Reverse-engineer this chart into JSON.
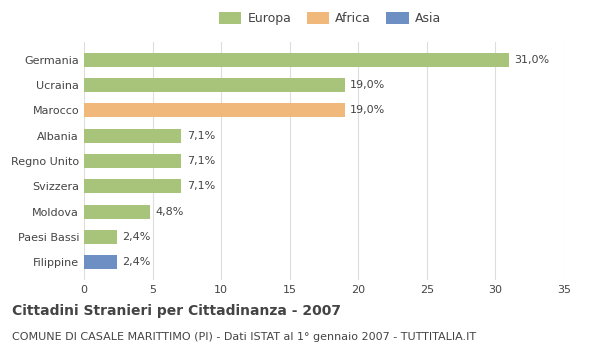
{
  "categories": [
    "Filippine",
    "Paesi Bassi",
    "Moldova",
    "Svizzera",
    "Regno Unito",
    "Albania",
    "Marocco",
    "Ucraina",
    "Germania"
  ],
  "values": [
    2.4,
    2.4,
    4.8,
    7.1,
    7.1,
    7.1,
    19.0,
    19.0,
    31.0
  ],
  "labels": [
    "2,4%",
    "2,4%",
    "4,8%",
    "7,1%",
    "7,1%",
    "7,1%",
    "19,0%",
    "19,0%",
    "31,0%"
  ],
  "colors": [
    "#6e8fc4",
    "#a8c47a",
    "#a8c47a",
    "#a8c47a",
    "#a8c47a",
    "#a8c47a",
    "#f0b87a",
    "#a8c47a",
    "#a8c47a"
  ],
  "continent": [
    "Asia",
    "Europa",
    "Europa",
    "Europa",
    "Europa",
    "Europa",
    "Africa",
    "Europa",
    "Europa"
  ],
  "legend": [
    {
      "label": "Europa",
      "color": "#a8c47a"
    },
    {
      "label": "Africa",
      "color": "#f0b87a"
    },
    {
      "label": "Asia",
      "color": "#6e8fc4"
    }
  ],
  "xlim": [
    0,
    35
  ],
  "xticks": [
    0,
    5,
    10,
    15,
    20,
    25,
    30,
    35
  ],
  "title": "Cittadini Stranieri per Cittadinanza - 2007",
  "subtitle": "COMUNE DI CASALE MARITTIMO (PI) - Dati ISTAT al 1° gennaio 2007 - TUTTITALIA.IT",
  "title_fontsize": 10,
  "subtitle_fontsize": 8,
  "label_fontsize": 8,
  "tick_fontsize": 8,
  "bar_height": 0.55,
  "background_color": "#ffffff",
  "grid_color": "#dddddd",
  "text_color": "#444444"
}
